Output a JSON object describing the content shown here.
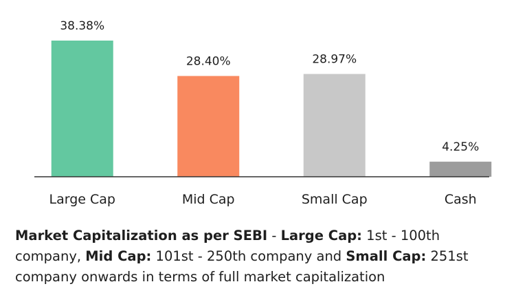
{
  "chart_data": {
    "type": "bar",
    "categories": [
      "Large Cap",
      "Mid Cap",
      "Small Cap",
      "Cash"
    ],
    "values": [
      38.38,
      28.4,
      28.97,
      4.25
    ],
    "data_labels": [
      "38.38%",
      "28.40%",
      "28.97%",
      "4.25%"
    ],
    "colors": [
      "#63c8a0",
      "#f9895f",
      "#c8c8c8",
      "#9c9c9c"
    ],
    "title": "",
    "xlabel": "",
    "ylabel": "",
    "ylim": [
      0,
      40
    ],
    "grid": false,
    "legend": "none"
  },
  "footnote": {
    "term1": "Market Capitalization as per SEBI",
    "sep1": " - ",
    "term2": "Large Cap:",
    "desc2": " 1st - 100th company, ",
    "term3": "Mid Cap:",
    "desc3": " 101st - 250th company and ",
    "term4": "Small Cap:",
    "desc4": " 251st company onwards in terms of full market capitalization"
  }
}
